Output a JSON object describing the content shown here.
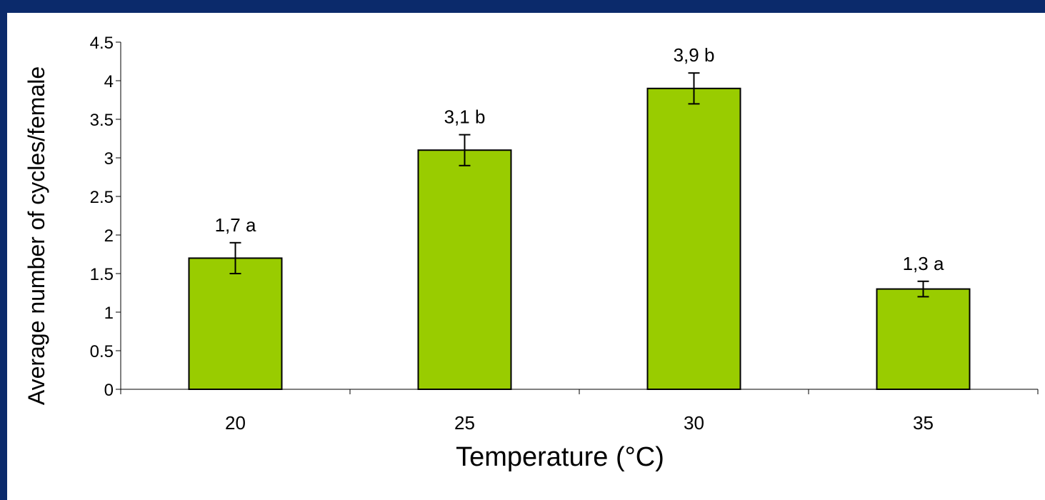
{
  "colors": {
    "background_border": "#0b2a6b",
    "plot_background": "#ffffff",
    "bar_fill": "#99cc00",
    "bar_stroke": "#000000"
  },
  "chart_data": {
    "type": "bar",
    "categories": [
      "20",
      "25",
      "30",
      "35"
    ],
    "values": [
      1.7,
      3.1,
      3.9,
      1.3
    ],
    "error": [
      0.2,
      0.2,
      0.2,
      0.1
    ],
    "data_labels": [
      "1,7 a",
      "3,1 b",
      "3,9 b",
      "1,3 a"
    ],
    "xlabel": "Temperature (°C)",
    "ylabel": "Average number of cycles/female",
    "ylim": [
      0,
      4.5
    ],
    "yticks": [
      "0",
      "0.5",
      "1",
      "1.5",
      "2",
      "2.5",
      "3",
      "3.5",
      "4",
      "4.5"
    ],
    "grid": false,
    "legend": "none"
  }
}
